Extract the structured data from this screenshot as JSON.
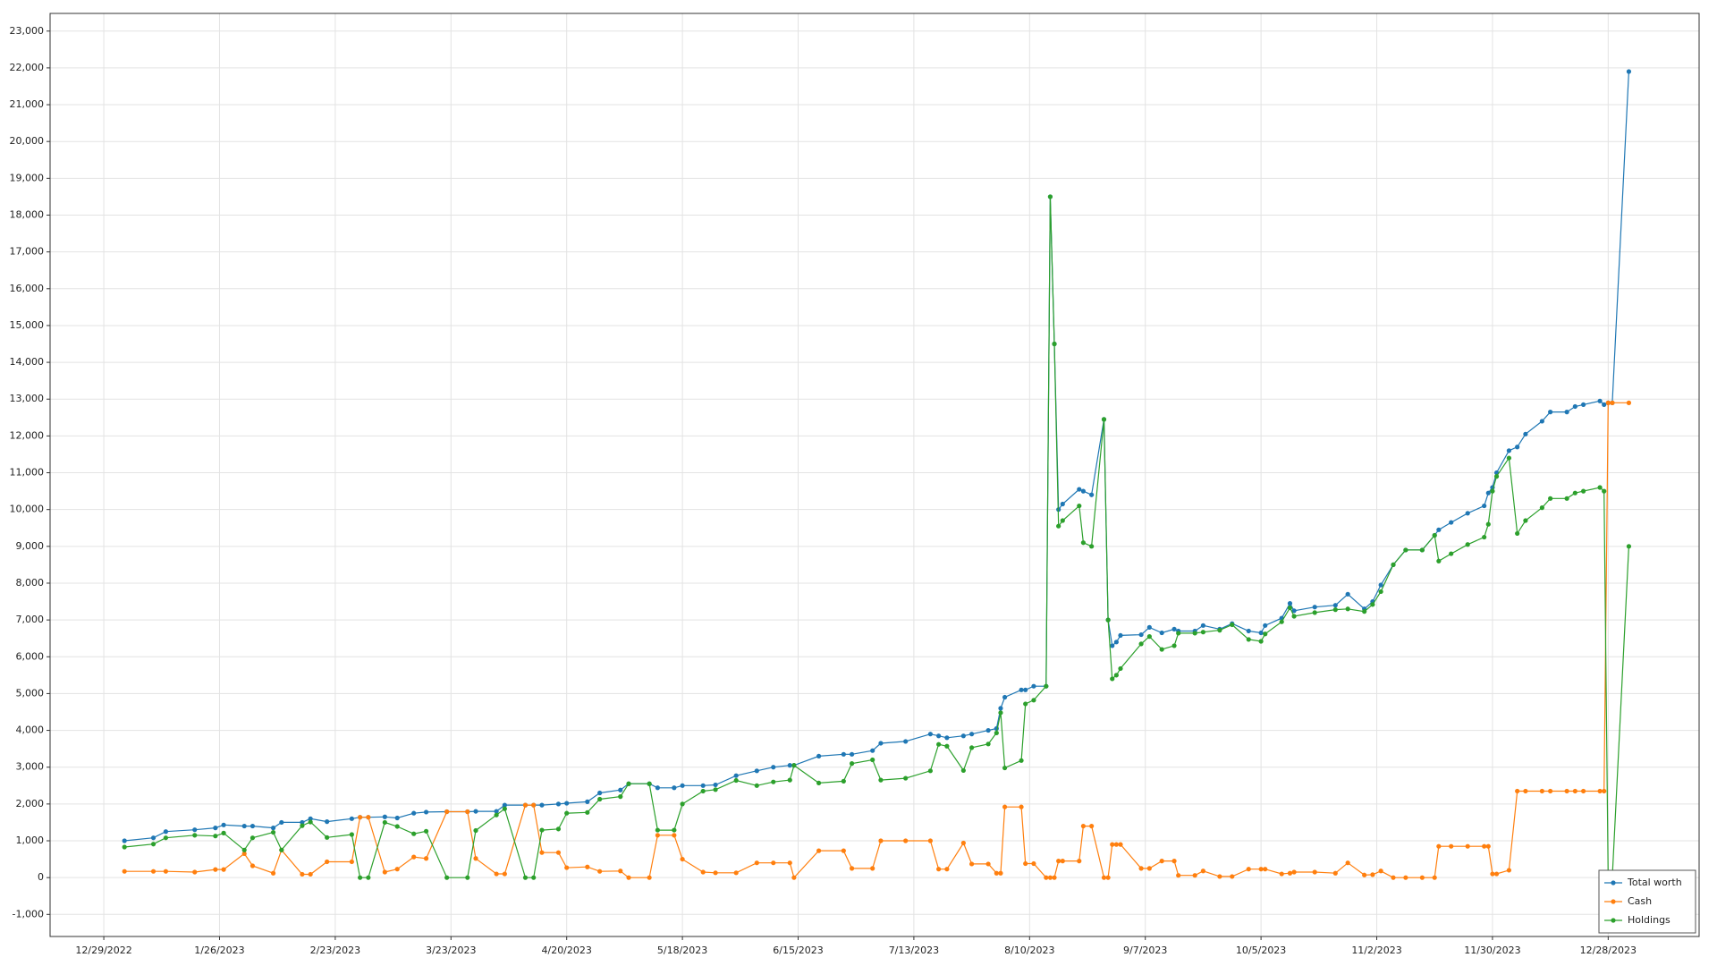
{
  "chart_data": {
    "type": "line",
    "x": [
      "1/3/2023",
      "1/10/2023",
      "1/13/2023",
      "1/20/2023",
      "1/25/2023",
      "1/27/2023",
      "2/1/2023",
      "2/3/2023",
      "2/8/2023",
      "2/10/2023",
      "2/15/2023",
      "2/17/2023",
      "2/21/2023",
      "2/27/2023",
      "3/1/2023",
      "3/3/2023",
      "3/7/2023",
      "3/10/2023",
      "3/14/2023",
      "3/17/2023",
      "3/22/2023",
      "3/27/2023",
      "3/29/2023",
      "4/3/2023",
      "4/5/2023",
      "4/10/2023",
      "4/12/2023",
      "4/14/2023",
      "4/18/2023",
      "4/20/2023",
      "4/25/2023",
      "4/28/2023",
      "5/3/2023",
      "5/5/2023",
      "5/10/2023",
      "5/12/2023",
      "5/16/2023",
      "5/18/2023",
      "5/23/2023",
      "5/26/2023",
      "5/31/2023",
      "6/5/2023",
      "6/9/2023",
      "6/13/2023",
      "6/14/2023",
      "6/20/2023",
      "6/26/2023",
      "6/28/2023",
      "7/3/2023",
      "7/5/2023",
      "7/11/2023",
      "7/17/2023",
      "7/19/2023",
      "7/21/2023",
      "7/25/2023",
      "7/27/2023",
      "7/31/2023",
      "8/2/2023",
      "8/3/2023",
      "8/4/2023",
      "8/8/2023",
      "8/9/2023",
      "8/11/2023",
      "8/14/2023",
      "8/15/2023",
      "8/16/2023",
      "8/17/2023",
      "8/18/2023",
      "8/22/2023",
      "8/23/2023",
      "8/25/2023",
      "8/28/2023",
      "8/29/2023",
      "8/30/2023",
      "8/31/2023",
      "9/1/2023",
      "9/6/2023",
      "9/8/2023",
      "9/11/2023",
      "9/14/2023",
      "9/15/2023",
      "9/19/2023",
      "9/21/2023",
      "9/25/2023",
      "9/28/2023",
      "10/2/2023",
      "10/5/2023",
      "10/6/2023",
      "10/10/2023",
      "10/12/2023",
      "10/13/2023",
      "10/18/2023",
      "10/23/2023",
      "10/26/2023",
      "10/30/2023",
      "11/1/2023",
      "11/3/2023",
      "11/6/2023",
      "11/9/2023",
      "11/13/2023",
      "11/16/2023",
      "11/17/2023",
      "11/20/2023",
      "11/24/2023",
      "11/28/2023",
      "11/29/2023",
      "11/30/2023",
      "12/1/2023",
      "12/4/2023",
      "12/6/2023",
      "12/8/2023",
      "12/12/2023",
      "12/14/2023",
      "12/18/2023",
      "12/20/2023",
      "12/22/2023",
      "12/26/2023",
      "12/27/2023",
      "12/28/2023",
      "12/29/2023",
      "1/2/2024"
    ],
    "series": [
      {
        "name": "Total worth",
        "color": "#1f77b4",
        "values": [
          1000,
          1080,
          1250,
          1300,
          1350,
          1430,
          1400,
          1400,
          1350,
          1500,
          1500,
          1600,
          1520,
          1600,
          1640,
          1640,
          1650,
          1620,
          1750,
          1780,
          1790,
          1790,
          1800,
          1800,
          1970,
          1970,
          1970,
          1970,
          2000,
          2020,
          2060,
          2300,
          2380,
          2550,
          2550,
          2440,
          2440,
          2500,
          2500,
          2520,
          2770,
          2900,
          3000,
          3050,
          3050,
          3300,
          3350,
          3350,
          3450,
          3650,
          3700,
          3900,
          3850,
          3800,
          3850,
          3900,
          4000,
          4050,
          4600,
          4900,
          5100,
          5100,
          5200,
          5200,
          18500,
          14500,
          10000,
          10150,
          10550,
          10500,
          10400,
          12450,
          7000,
          6300,
          6400,
          6580,
          6600,
          6800,
          6650,
          6750,
          6700,
          6700,
          6850,
          6750,
          6900,
          6700,
          6650,
          6850,
          7050,
          7450,
          7250,
          7350,
          7400,
          7700,
          7300,
          7500,
          7950,
          8500,
          8900,
          8900,
          9300,
          9450,
          9650,
          9900,
          10100,
          10450,
          10600,
          11000,
          11600,
          11700,
          12050,
          12400,
          12650,
          12650,
          12800,
          12850,
          12950,
          12850,
          12900,
          12900,
          21900
        ]
      },
      {
        "name": "Cash",
        "color": "#ff7f0e",
        "values": [
          170,
          170,
          170,
          150,
          220,
          220,
          650,
          320,
          120,
          750,
          90,
          90,
          430,
          430,
          1640,
          1640,
          150,
          230,
          560,
          520,
          1790,
          1790,
          520,
          100,
          100,
          1970,
          1970,
          680,
          680,
          270,
          290,
          170,
          180,
          0,
          0,
          1150,
          1150,
          500,
          150,
          130,
          130,
          400,
          400,
          400,
          0,
          730,
          730,
          250,
          250,
          1000,
          1000,
          1000,
          230,
          230,
          940,
          370,
          370,
          120,
          120,
          1920,
          1920,
          380,
          380,
          0,
          0,
          0,
          450,
          450,
          450,
          1400,
          1400,
          0,
          0,
          900,
          900,
          900,
          250,
          250,
          450,
          450,
          60,
          60,
          180,
          30,
          30,
          230,
          230,
          230,
          100,
          120,
          150,
          150,
          120,
          400,
          70,
          80,
          180,
          0,
          0,
          0,
          0,
          850,
          850,
          850,
          850,
          850,
          100,
          100,
          200,
          2350,
          2350,
          2350,
          2350,
          2350,
          2350,
          2350,
          2350,
          2350,
          12900,
          12900,
          12900
        ]
      },
      {
        "name": "Holdings",
        "color": "#2ca02c",
        "values": [
          830,
          910,
          1080,
          1150,
          1130,
          1210,
          750,
          1080,
          1230,
          750,
          1410,
          1510,
          1090,
          1170,
          0,
          0,
          1500,
          1390,
          1190,
          1260,
          0,
          0,
          1280,
          1700,
          1870,
          0,
          0,
          1290,
          1320,
          1750,
          1770,
          2130,
          2200,
          2550,
          2550,
          1290,
          1290,
          2000,
          2350,
          2390,
          2640,
          2500,
          2600,
          2650,
          3050,
          2570,
          2620,
          3100,
          3200,
          2650,
          2700,
          2900,
          3620,
          3570,
          2910,
          3530,
          3630,
          3930,
          4480,
          2980,
          3180,
          4720,
          4820,
          5200,
          18500,
          14500,
          9550,
          9700,
          10100,
          9100,
          9000,
          12450,
          7000,
          5400,
          5500,
          5680,
          6350,
          6550,
          6200,
          6300,
          6640,
          6640,
          6670,
          6720,
          6870,
          6470,
          6420,
          6620,
          6950,
          7330,
          7100,
          7200,
          7280,
          7300,
          7230,
          7420,
          7770,
          8500,
          8900,
          8900,
          9300,
          8600,
          8800,
          9050,
          9250,
          9600,
          10500,
          10900,
          11400,
          9350,
          9700,
          10050,
          10300,
          10300,
          10450,
          10500,
          10600,
          10500,
          0,
          0,
          9000
        ]
      }
    ],
    "xlim": [
      "12/16/2022",
      "1/19/2024"
    ],
    "xticks": [
      "12/29/2022",
      "1/26/2023",
      "2/23/2023",
      "3/23/2023",
      "4/20/2023",
      "5/18/2023",
      "6/15/2023",
      "7/13/2023",
      "8/10/2023",
      "9/7/2023",
      "10/5/2023",
      "11/2/2023",
      "11/30/2023",
      "12/28/2023"
    ],
    "ylim": [
      -1600,
      23480
    ],
    "yticks": [
      {
        "value": -1000,
        "label": "-1,000"
      },
      0,
      {
        "value": 1000,
        "label": "1,000"
      },
      {
        "value": 2000,
        "label": "2,000"
      },
      {
        "value": 3000,
        "label": "3,000"
      },
      {
        "value": 4000,
        "label": "4,000"
      },
      {
        "value": 5000,
        "label": "5,000"
      },
      {
        "value": 6000,
        "label": "6,000"
      },
      {
        "value": 7000,
        "label": "7,000"
      },
      {
        "value": 8000,
        "label": "8,000"
      },
      {
        "value": 9000,
        "label": "9,000"
      },
      {
        "value": 10000,
        "label": "10,000"
      },
      {
        "value": 11000,
        "label": "11,000"
      },
      {
        "value": 12000,
        "label": "12,000"
      },
      {
        "value": 13000,
        "label": "13,000"
      },
      {
        "value": 14000,
        "label": "14,000"
      },
      {
        "value": 15000,
        "label": "15,000"
      },
      {
        "value": 16000,
        "label": "16,000"
      },
      {
        "value": 17000,
        "label": "17,000"
      },
      {
        "value": 18000,
        "label": "18,000"
      },
      {
        "value": 19000,
        "label": "19,000"
      },
      {
        "value": 20000,
        "label": "20,000"
      },
      {
        "value": 21000,
        "label": "21,000"
      },
      {
        "value": 22000,
        "label": "22,000"
      },
      {
        "value": 23000,
        "label": "23,000"
      }
    ],
    "grid": true,
    "legend": "lower right"
  }
}
